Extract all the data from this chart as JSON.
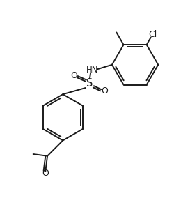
{
  "background_color": "#ffffff",
  "line_color": "#1a1a1a",
  "line_width": 1.4,
  "figsize": [
    2.73,
    2.94
  ],
  "dpi": 100,
  "xlim": [
    0,
    10
  ],
  "ylim": [
    0,
    10.77
  ]
}
